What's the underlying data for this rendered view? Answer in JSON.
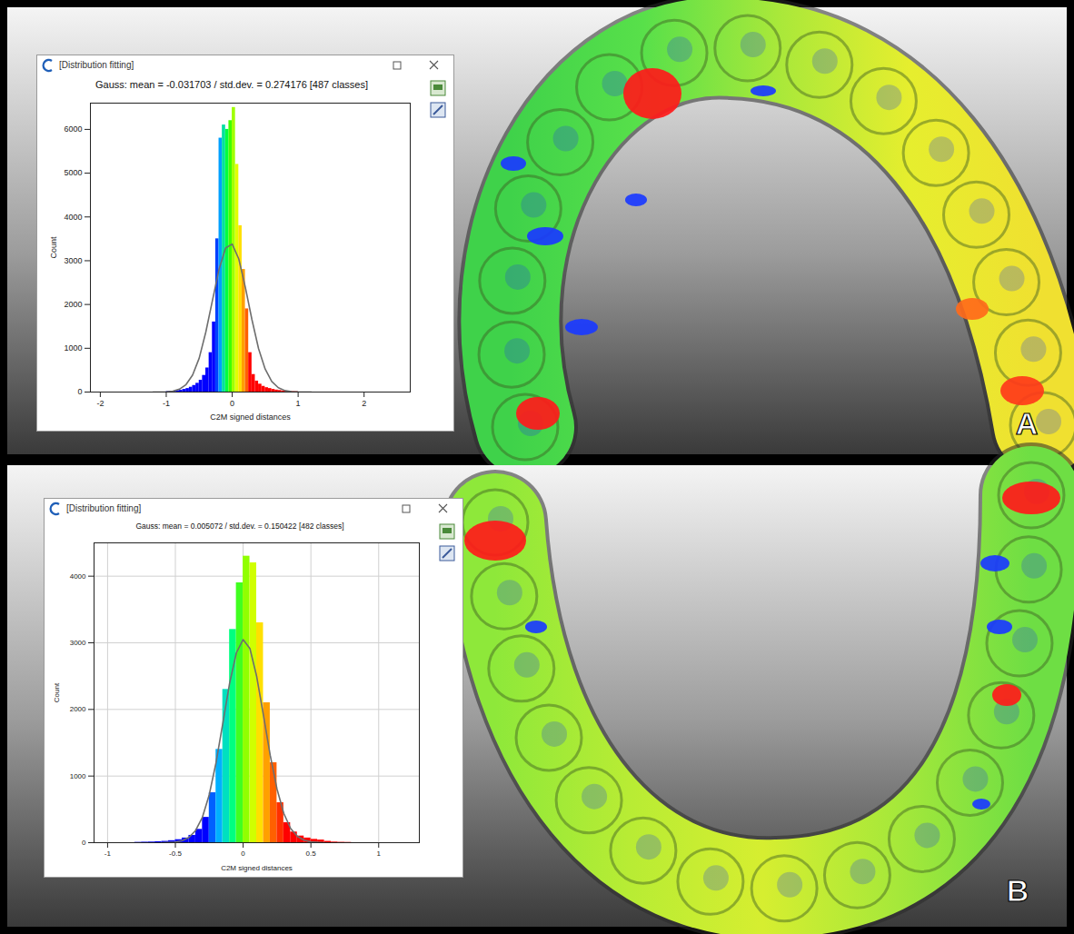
{
  "chart_data": [
    {
      "type": "histogram",
      "panel": "A",
      "window_title": "[Distribution fitting]",
      "title": "Gauss: mean = -0.031703 / std.dev. = 0.274176 [487 classes]",
      "x_label": "C2M signed distances",
      "y_label": "Count",
      "bins": [
        -1,
        -0.95,
        -0.9,
        -0.85,
        -0.8,
        -0.75,
        -0.7,
        -0.65,
        -0.6,
        -0.55,
        -0.5,
        -0.45,
        -0.4,
        -0.35,
        -0.3,
        -0.25,
        -0.2,
        -0.15,
        -0.1,
        -0.05,
        0,
        0.05,
        0.1,
        0.15,
        0.2,
        0.25,
        0.3,
        0.35,
        0.4,
        0.45,
        0.5,
        0.55,
        0.6,
        0.65,
        0.7,
        0.75,
        0.8,
        0.85,
        0.9,
        0.95,
        1
      ],
      "counts": [
        10,
        15,
        20,
        30,
        40,
        60,
        80,
        110,
        150,
        200,
        270,
        380,
        550,
        900,
        1600,
        3500,
        5800,
        6100,
        6000,
        6200,
        6500,
        5200,
        3800,
        2800,
        1900,
        900,
        400,
        250,
        180,
        130,
        100,
        80,
        60,
        45,
        35,
        25,
        20,
        15,
        10,
        8
      ],
      "colors": [
        "#0000ff",
        "#0000ff",
        "#0000ff",
        "#0000ff",
        "#0000ff",
        "#0000ff",
        "#0000ff",
        "#0000ff",
        "#0000ff",
        "#0000ff",
        "#0000ff",
        "#0000ff",
        "#0000ff",
        "#0000ff",
        "#0000ff",
        "#0040ff",
        "#00a0ff",
        "#00e0a0",
        "#00ff40",
        "#40ff00",
        "#a0ff00",
        "#e0ff00",
        "#ffe000",
        "#ffa000",
        "#ff6000",
        "#ff0000",
        "#ff0000",
        "#ff0000",
        "#ff0000",
        "#ff0000",
        "#ff0000",
        "#ff0000",
        "#ff0000",
        "#ff0000",
        "#ff0000",
        "#ff0000",
        "#ff0000",
        "#ff0000",
        "#ff0000",
        "#ff0000"
      ],
      "fit_curve": {
        "color": "#6e6e6e",
        "x": [
          -1.2,
          -1,
          -0.9,
          -0.8,
          -0.7,
          -0.6,
          -0.5,
          -0.4,
          -0.3,
          -0.2,
          -0.1,
          0,
          0.1,
          0.2,
          0.3,
          0.4,
          0.5,
          0.6,
          0.7,
          0.8,
          0.9,
          1,
          1.2
        ],
        "y": [
          0,
          6,
          22,
          65,
          170,
          390,
          775,
          1370,
          2090,
          2800,
          3290,
          3380,
          3040,
          2390,
          1650,
          990,
          525,
          240,
          98,
          34,
          10,
          3,
          0
        ]
      },
      "xlim": [
        -2.15,
        2.7
      ],
      "ylim": [
        0,
        6600
      ],
      "xticks": [
        -2,
        -1,
        0,
        1,
        2
      ],
      "yticks": [
        0,
        1000,
        2000,
        3000,
        4000,
        5000,
        6000
      ],
      "grid": false
    },
    {
      "type": "histogram",
      "panel": "B",
      "window_title": "[Distribution fitting]",
      "title": "Gauss: mean = 0.005072 / std.dev. = 0.150422 [482 classes]",
      "x_label": "C2M signed distances",
      "y_label": "Count",
      "bins": [
        -0.8,
        -0.75,
        -0.7,
        -0.65,
        -0.6,
        -0.55,
        -0.5,
        -0.45,
        -0.4,
        -0.35,
        -0.3,
        -0.25,
        -0.2,
        -0.15,
        -0.1,
        -0.05,
        0,
        0.05,
        0.1,
        0.15,
        0.2,
        0.25,
        0.3,
        0.35,
        0.4,
        0.45,
        0.5,
        0.55,
        0.6,
        0.65,
        0.7,
        0.75,
        0.8
      ],
      "counts": [
        5,
        8,
        10,
        15,
        20,
        30,
        45,
        70,
        110,
        200,
        380,
        750,
        1400,
        2300,
        3200,
        3900,
        4300,
        4200,
        3300,
        2100,
        1200,
        600,
        300,
        160,
        100,
        70,
        50,
        40,
        20,
        10,
        6,
        4
      ],
      "colors": [
        "#0000ff",
        "#0000ff",
        "#0000ff",
        "#0000ff",
        "#0000ff",
        "#0000ff",
        "#0000ff",
        "#0000ff",
        "#0000ff",
        "#0000ff",
        "#0000ff",
        "#0060ff",
        "#00b0ff",
        "#00e0c0",
        "#00ff80",
        "#40ff20",
        "#90ff00",
        "#d0ff00",
        "#ffe000",
        "#ffa000",
        "#ff6000",
        "#ff3000",
        "#ff0000",
        "#ff0000",
        "#ff0000",
        "#ff0000",
        "#ff0000",
        "#ff0000",
        "#ff0000",
        "#ff0000",
        "#ff0000",
        "#ff0000"
      ],
      "fit_curve": {
        "color": "#6e6e6e",
        "x": [
          -0.6,
          -0.5,
          -0.45,
          -0.4,
          -0.35,
          -0.3,
          -0.25,
          -0.2,
          -0.15,
          -0.1,
          -0.05,
          0,
          0.05,
          0.1,
          0.15,
          0.2,
          0.25,
          0.3,
          0.35,
          0.4,
          0.45,
          0.5,
          0.6
        ],
        "y": [
          1,
          11,
          31,
          79,
          185,
          385,
          720,
          1200,
          1790,
          2390,
          2850,
          3048,
          2915,
          2495,
          1910,
          1310,
          805,
          440,
          215,
          95,
          37,
          13,
          1
        ]
      },
      "xlim": [
        -1.1,
        1.3
      ],
      "ylim": [
        0,
        4500
      ],
      "xticks": [
        -1,
        -0.5,
        0,
        0.5,
        1
      ],
      "yticks": [
        0,
        1000,
        2000,
        3000,
        4000
      ],
      "grid": true
    }
  ]
}
